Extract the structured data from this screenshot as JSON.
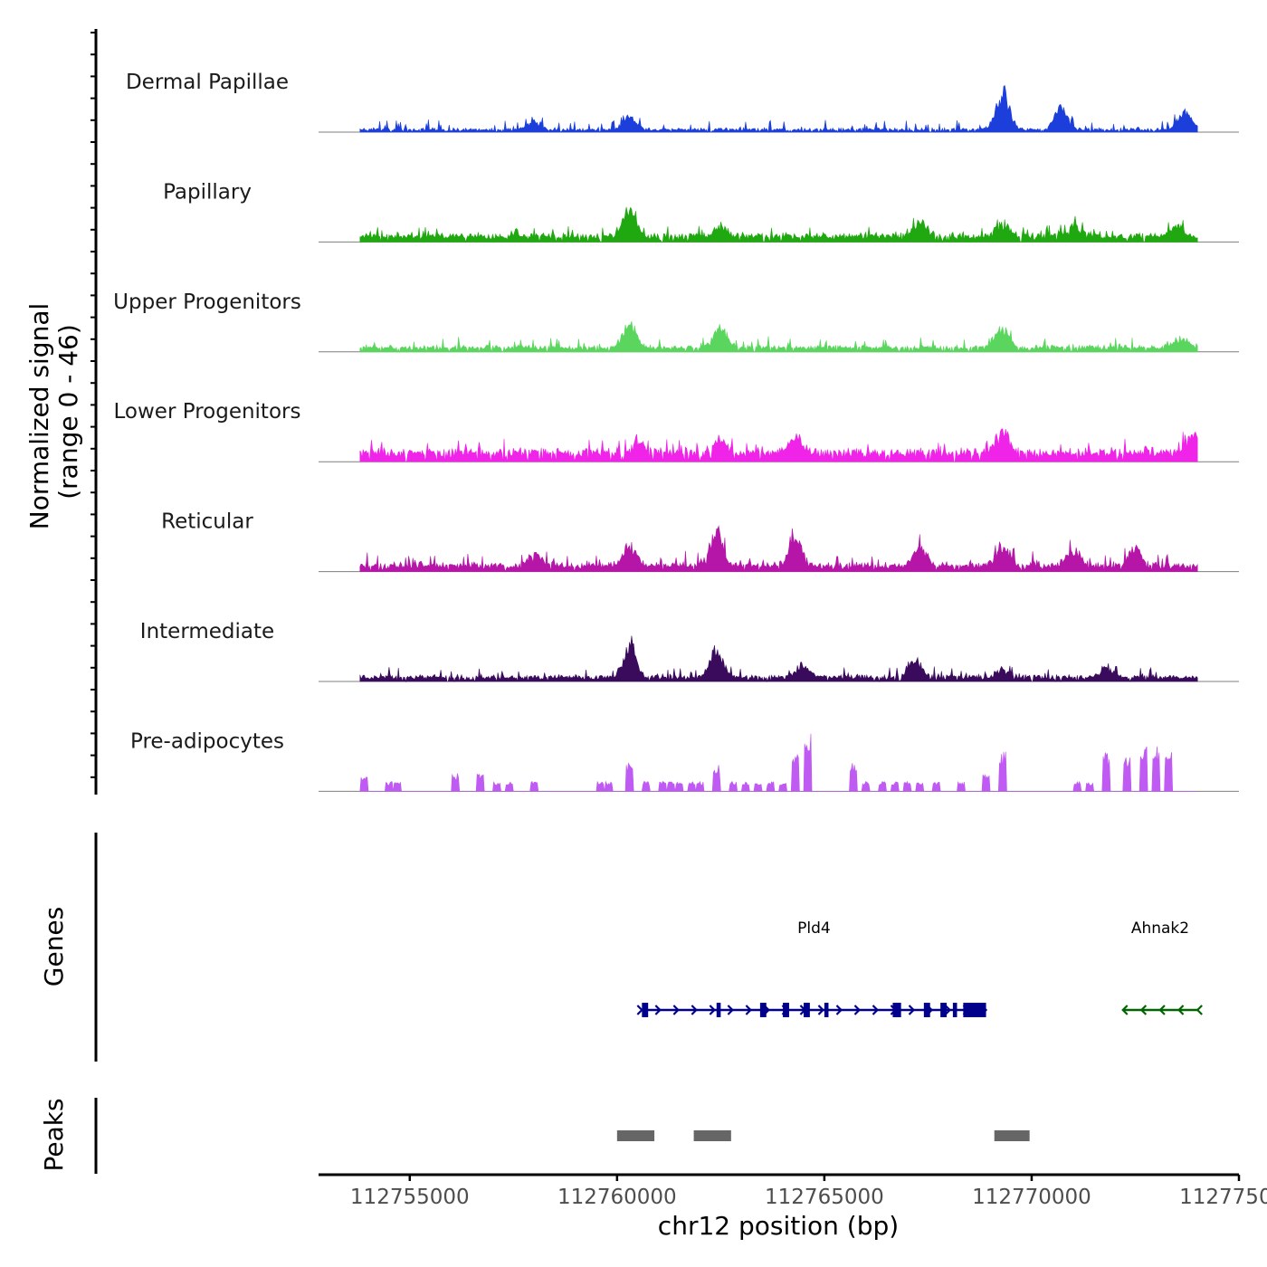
{
  "chart_data": {
    "type": "area",
    "y_axis_title": [
      "Normalized signal",
      "(range 0 - 46)"
    ],
    "signal_range": [
      0,
      46
    ],
    "x_axis": {
      "label": "chr12 position (bp)",
      "range": [
        112752800,
        112775000
      ],
      "ticks": [
        112755000,
        112760000,
        112765000,
        112770000,
        112775000
      ],
      "tick_labels": [
        "112755000",
        "112760000",
        "112765000",
        "112770000",
        "112775000"
      ]
    },
    "track_x_range": [
      112753800,
      112774000
    ],
    "tracks": [
      {
        "name": "Dermal Papillae",
        "color": "#1c3fdb",
        "baseline": 0.8,
        "noise": 4,
        "peaks": [
          [
            112760300,
            9
          ],
          [
            112769300,
            26
          ],
          [
            112770700,
            15
          ],
          [
            112773700,
            14
          ],
          [
            112758000,
            6
          ]
        ]
      },
      {
        "name": "Papillary",
        "color": "#1fa80f",
        "baseline": 3,
        "noise": 4,
        "peaks": [
          [
            112760300,
            19
          ],
          [
            112762500,
            7
          ],
          [
            112767300,
            11
          ],
          [
            112769300,
            10
          ],
          [
            112771000,
            7
          ],
          [
            112773500,
            8
          ]
        ]
      },
      {
        "name": "Upper Progenitors",
        "color": "#5ad65e",
        "baseline": 2,
        "noise": 4,
        "peaks": [
          [
            112760300,
            17
          ],
          [
            112762500,
            14
          ],
          [
            112769300,
            14
          ],
          [
            112773600,
            7
          ]
        ]
      },
      {
        "name": "Lower Progenitors",
        "color": "#f023e8",
        "baseline": 5,
        "noise": 5,
        "peaks": [
          [
            112760500,
            9
          ],
          [
            112762500,
            10
          ],
          [
            112764300,
            11
          ],
          [
            112769300,
            18
          ],
          [
            112773900,
            14
          ]
        ]
      },
      {
        "name": "Reticular",
        "color": "#b516a8",
        "baseline": 3,
        "noise": 5,
        "peaks": [
          [
            112758000,
            9
          ],
          [
            112760300,
            15
          ],
          [
            112762400,
            25
          ],
          [
            112764300,
            19
          ],
          [
            112767300,
            13
          ],
          [
            112769300,
            14
          ],
          [
            112771000,
            11
          ],
          [
            112772500,
            12
          ]
        ]
      },
      {
        "name": "Intermediate",
        "color": "#3a0a5c",
        "baseline": 2,
        "noise": 4,
        "peaks": [
          [
            112760300,
            22
          ],
          [
            112762400,
            19
          ],
          [
            112764500,
            7
          ],
          [
            112767200,
            12
          ],
          [
            112769300,
            6
          ],
          [
            112771800,
            7
          ]
        ]
      },
      {
        "name": "Pre-adipocytes",
        "color": "#bf5af2",
        "sparse": true,
        "peaks": [
          [
            112753900,
            13
          ],
          [
            112754500,
            7
          ],
          [
            112754700,
            7
          ],
          [
            112756100,
            13
          ],
          [
            112756700,
            13
          ],
          [
            112757100,
            7
          ],
          [
            112757400,
            7
          ],
          [
            112758000,
            7
          ],
          [
            112759600,
            7
          ],
          [
            112759800,
            7
          ],
          [
            112760300,
            20
          ],
          [
            112760700,
            7
          ],
          [
            112761100,
            7
          ],
          [
            112761300,
            7
          ],
          [
            112761500,
            7
          ],
          [
            112761800,
            7
          ],
          [
            112762000,
            7
          ],
          [
            112762400,
            19
          ],
          [
            112762800,
            7
          ],
          [
            112763100,
            7
          ],
          [
            112763400,
            7
          ],
          [
            112763700,
            7
          ],
          [
            112764000,
            7
          ],
          [
            112764300,
            26
          ],
          [
            112764600,
            42
          ],
          [
            112765700,
            20
          ],
          [
            112766000,
            7
          ],
          [
            112766400,
            7
          ],
          [
            112766700,
            7
          ],
          [
            112767000,
            7
          ],
          [
            112767300,
            7
          ],
          [
            112767700,
            7
          ],
          [
            112768300,
            7
          ],
          [
            112768900,
            13
          ],
          [
            112769300,
            28
          ],
          [
            112771100,
            7
          ],
          [
            112771400,
            7
          ],
          [
            112771800,
            28
          ],
          [
            112772300,
            25
          ],
          [
            112772700,
            34
          ],
          [
            112773000,
            33
          ],
          [
            112773300,
            28
          ]
        ]
      }
    ],
    "genes": [
      {
        "name": "Pld4",
        "strand": "+",
        "color": "#00008b",
        "start": 112760600,
        "end": 112768900,
        "exons": [
          [
            112760600,
            112760750
          ],
          [
            112762400,
            112762500
          ],
          [
            112763450,
            112763600
          ],
          [
            112764000,
            112764150
          ],
          [
            112764500,
            112764650
          ],
          [
            112765000,
            112765100
          ],
          [
            112766650,
            112766850
          ],
          [
            112767400,
            112767550
          ],
          [
            112767800,
            112767950
          ],
          [
            112768100,
            112768200
          ],
          [
            112768350,
            112768900
          ]
        ]
      },
      {
        "name": "Ahnak2",
        "strand": "-",
        "color": "#006400",
        "start": 112772200,
        "end": 112774000,
        "exons": []
      }
    ],
    "peaks": [
      {
        "start": 112760000,
        "end": 112760900
      },
      {
        "start": 112761850,
        "end": 112762750
      },
      {
        "start": 112769100,
        "end": 112769950
      }
    ],
    "panel_titles": {
      "genes": "Genes",
      "peaks": "Peaks"
    }
  }
}
